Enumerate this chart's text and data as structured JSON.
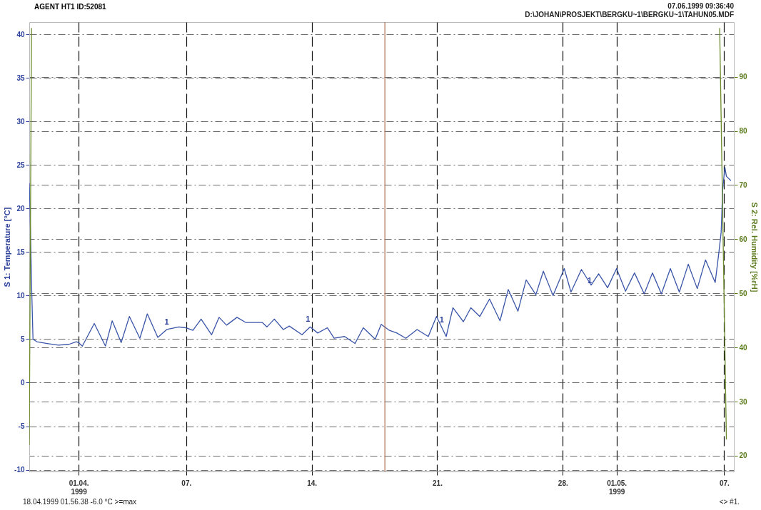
{
  "chart_data": {
    "type": "line",
    "title": "AGENT HT1 ID:52081",
    "ylabel": "S 1: Temperature [°C]",
    "y2label": "S 2: Rel. Humidity [%rH]",
    "annotations": [
      "07.06.1999 09:36:40",
      "D:\\JOHAN\\PROSJEKT\\BERGKU~1\\BERGKU~1\\TAHUN05.MDF",
      "18.04.1999 01.56.38 -6.0 °C >=max",
      "<> #1.",
      {
        "text": "1",
        "x": "1999-04-05T22:00",
        "y": 6.2
      },
      {
        "text": "1",
        "x": "1999-04-13T19:00",
        "y": 6.5
      },
      {
        "text": "1",
        "x": "1999-04-21T06:00",
        "y": 6.4
      },
      {
        "text": "1",
        "x": "1999-04-29T12:00",
        "y": 10.9
      }
    ],
    "xlim": [
      "1999-03-29T06:00",
      "1999-05-07T13:00"
    ],
    "xticks": [
      {
        "value": "1999-04-01T00:00",
        "label": "01.04.\n1999"
      },
      {
        "value": "1999-04-07T00:00",
        "label": "07."
      },
      {
        "value": "1999-04-14T00:00",
        "label": "14."
      },
      {
        "value": "1999-04-21T00:00",
        "label": "21."
      },
      {
        "value": "1999-04-28T00:00",
        "label": "28."
      },
      {
        "value": "1999-05-01T00:00",
        "label": "01.05.\n1999"
      },
      {
        "value": "1999-05-07T00:00",
        "label": "07."
      }
    ],
    "ylim": [
      -10.2,
      41.4
    ],
    "yticks": [
      -10,
      -5,
      0,
      5,
      10,
      15,
      20,
      25,
      30,
      35,
      40
    ],
    "y2lim": [
      17.1,
      100.1
    ],
    "y2ticks": [
      20,
      30,
      40,
      50,
      60,
      70,
      80,
      90
    ],
    "grid": true,
    "ref_lines": [
      {
        "axis": "x",
        "value": "1999-04-18T01:56",
        "color": "#b07050"
      }
    ],
    "series": [
      {
        "color": "#3a55a8",
        "x": [
          "1999-03-29T06:00",
          "1999-03-29T07:00",
          "1999-03-29T09:00",
          "1999-03-29T11:00",
          "1999-03-29T16:00",
          "1999-03-30T06:00",
          "1999-03-30T21:00",
          "1999-03-31T11:00",
          "1999-03-31T21:00",
          "1999-04-01T00:00",
          "1999-04-01T05:00",
          "1999-04-01T21:00",
          "1999-04-02T12:00",
          "1999-04-02T21:00",
          "1999-04-03T09:00",
          "1999-04-03T20:00",
          "1999-04-04T10:00",
          "1999-04-04T20:00",
          "1999-04-05T10:00",
          "1999-04-05T22:00",
          "1999-04-06T14:00",
          "1999-04-07T00:00",
          "1999-04-07T09:00",
          "1999-04-07T20:00",
          "1999-04-08T10:00",
          "1999-04-08T20:00",
          "1999-04-09T06:00",
          "1999-04-09T20:00",
          "1999-04-10T08:00",
          "1999-04-11T06:00",
          "1999-04-11T12:00",
          "1999-04-11T22:00",
          "1999-04-12T10:00",
          "1999-04-12T18:00",
          "1999-04-13T11:00",
          "1999-04-13T22:00",
          "1999-04-14T08:00",
          "1999-04-14T21:00",
          "1999-04-15T06:00",
          "1999-04-15T20:00",
          "1999-04-16T10:00",
          "1999-04-16T21:00",
          "1999-04-17T13:00",
          "1999-04-17T21:00",
          "1999-04-18T08:00",
          "1999-04-18T18:00",
          "1999-04-19T06:00",
          "1999-04-19T21:00",
          "1999-04-20T12:00",
          "1999-04-20T23:00",
          "1999-04-21T12:00",
          "1999-04-21T21:00",
          "1999-04-22T11:00",
          "1999-04-22T21:00",
          "1999-04-23T09:00",
          "1999-04-23T22:00",
          "1999-04-24T12:00",
          "1999-04-24T23:00",
          "1999-04-25T12:00",
          "1999-04-25T23:00",
          "1999-04-26T12:00",
          "1999-04-26T22:00",
          "1999-04-27T11:00",
          "1999-04-28T02:00",
          "1999-04-28T11:00",
          "1999-04-29T01:00",
          "1999-04-29T14:00",
          "1999-04-30T00:00",
          "1999-04-30T12:00",
          "1999-05-01T00:00",
          "1999-05-01T12:00",
          "1999-05-02T00:00",
          "1999-05-02T13:00",
          "1999-05-03T00:00",
          "1999-05-03T12:00",
          "1999-05-04T00:00",
          "1999-05-04T12:00",
          "1999-05-05T00:00",
          "1999-05-05T12:00",
          "1999-05-05T23:00",
          "1999-05-06T12:00",
          "1999-05-06T17:00",
          "1999-05-06T20:00",
          "1999-05-06T22:00",
          "1999-05-07T01:00",
          "1999-05-07T03:00",
          "1999-05-07T09:00"
        ],
        "values": [
          22.9,
          19.8,
          11.5,
          5.0,
          4.7,
          4.5,
          4.3,
          4.4,
          4.7,
          4.6,
          4.2,
          6.8,
          4.2,
          7.1,
          4.6,
          7.6,
          5.1,
          7.9,
          5.2,
          6.1,
          6.4,
          6.3,
          6.0,
          7.3,
          5.5,
          7.5,
          6.6,
          7.5,
          6.9,
          6.9,
          6.4,
          7.3,
          6.1,
          6.5,
          5.5,
          6.4,
          5.7,
          6.3,
          5.1,
          5.3,
          4.5,
          6.3,
          5.0,
          6.7,
          6.0,
          5.7,
          5.1,
          6.1,
          5.3,
          7.6,
          5.3,
          8.6,
          7.0,
          8.6,
          7.6,
          9.6,
          7.1,
          10.7,
          8.2,
          11.8,
          10.1,
          12.8,
          10.0,
          13.1,
          10.4,
          13.0,
          11.2,
          12.5,
          10.9,
          13.1,
          10.5,
          12.6,
          10.2,
          12.6,
          10.2,
          13.1,
          10.4,
          13.6,
          10.8,
          14.1,
          11.5,
          15.0,
          17.3,
          22.2,
          24.7,
          23.7,
          23.2
        ]
      },
      {
        "color": "#6a8a2a",
        "axis": "y2",
        "x": [
          "1999-03-29T06:00",
          "1999-03-29T09:00",
          "1999-04-15T00:00",
          "1999-05-06T18:00",
          "1999-05-07T03:00"
        ],
        "values": [
          22,
          99,
          null,
          99,
          23
        ]
      }
    ]
  }
}
